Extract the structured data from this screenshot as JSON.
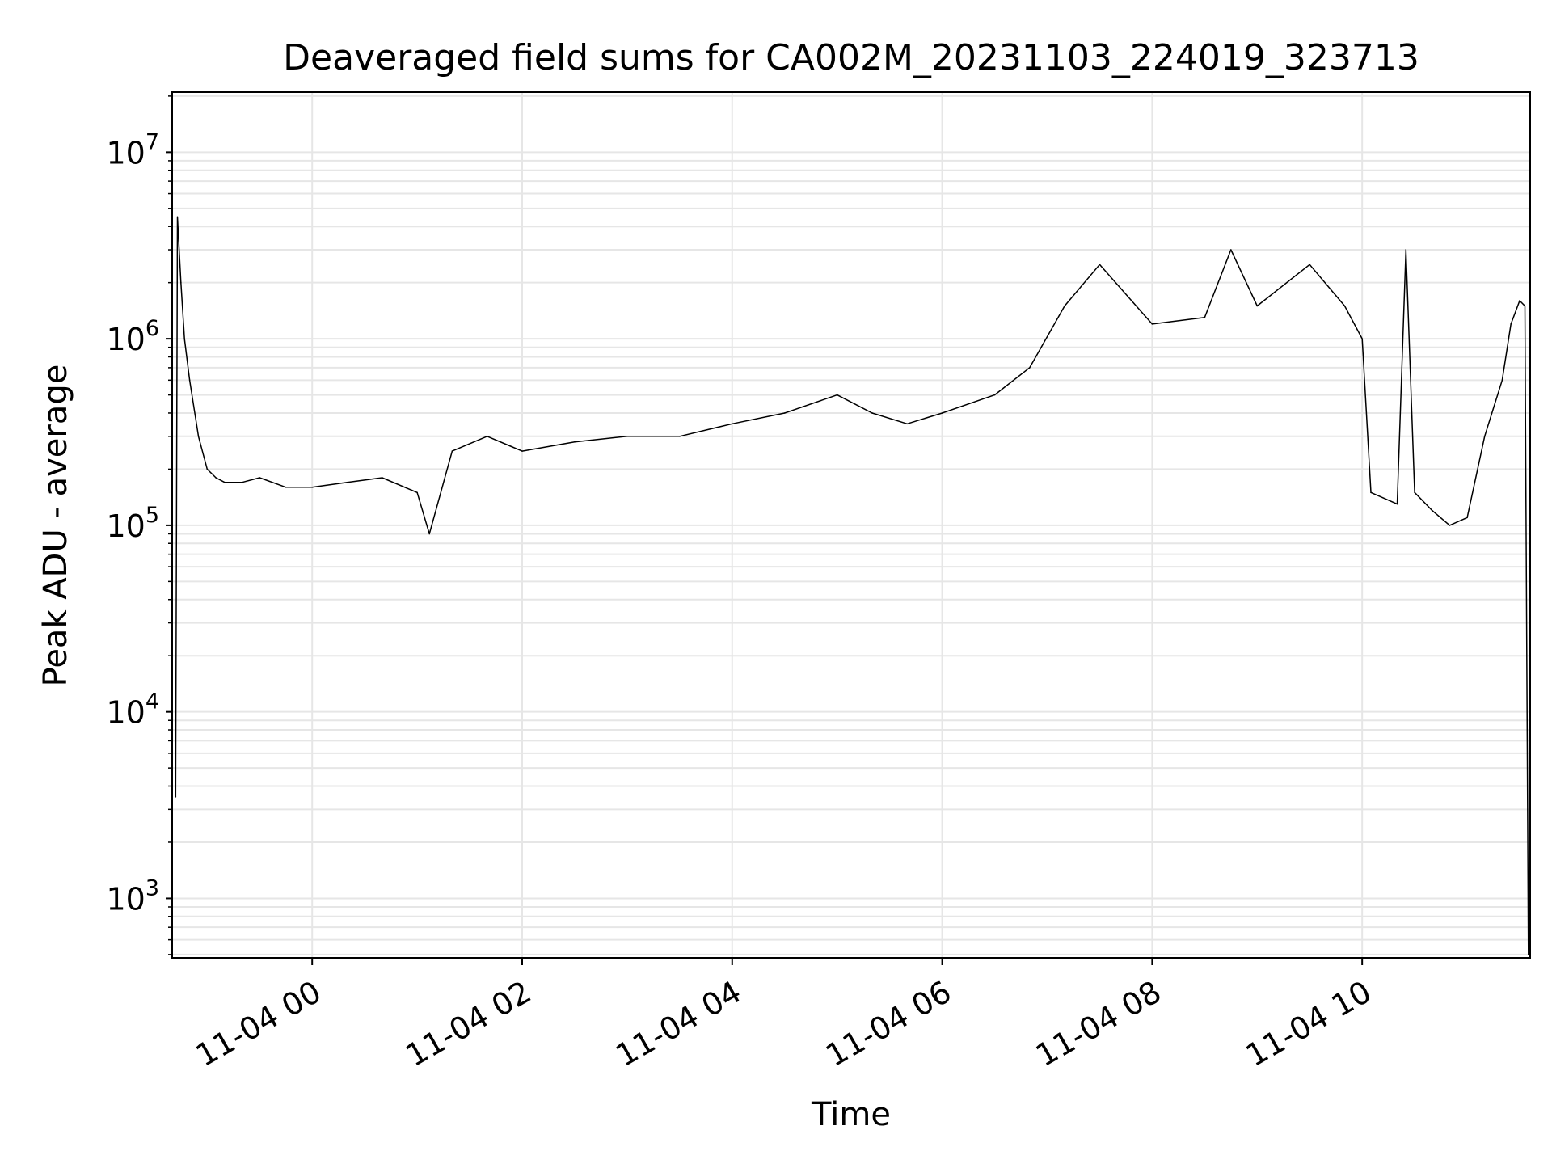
{
  "chart_data": {
    "type": "line",
    "title": "Deaveraged field sums for CA002M_20231103_224019_323713",
    "xlabel": "Time",
    "ylabel": "Peak ADU - average",
    "y_scale": "log",
    "ylim": [
      480,
      21000000
    ],
    "xlim": [
      "2023-11-03 22:40",
      "2023-11-04 11:36"
    ],
    "grid": true,
    "line_color": "#000000",
    "grid_color": "#e6e6e6",
    "x_ticks": [
      {
        "value": "2023-11-04 00:00",
        "label": "11-04 00"
      },
      {
        "value": "2023-11-04 02:00",
        "label": "11-04 02"
      },
      {
        "value": "2023-11-04 04:00",
        "label": "11-04 04"
      },
      {
        "value": "2023-11-04 06:00",
        "label": "11-04 06"
      },
      {
        "value": "2023-11-04 08:00",
        "label": "11-04 08"
      },
      {
        "value": "2023-11-04 10:00",
        "label": "11-04 10"
      }
    ],
    "y_ticks": [
      {
        "value": 1000,
        "base": "10",
        "exp": "3"
      },
      {
        "value": 10000,
        "base": "10",
        "exp": "4"
      },
      {
        "value": 100000,
        "base": "10",
        "exp": "5"
      },
      {
        "value": 1000000,
        "base": "10",
        "exp": "6"
      },
      {
        "value": 10000000,
        "base": "10",
        "exp": "7"
      }
    ],
    "series": [
      {
        "color": "#000000",
        "x": [
          "2023-11-03 22:42",
          "2023-11-03 22:43",
          "2023-11-03 22:45",
          "2023-11-03 22:47",
          "2023-11-03 22:50",
          "2023-11-03 22:55",
          "2023-11-03 23:00",
          "2023-11-03 23:05",
          "2023-11-03 23:10",
          "2023-11-03 23:20",
          "2023-11-03 23:30",
          "2023-11-03 23:45",
          "2023-11-04 00:00",
          "2023-11-04 00:20",
          "2023-11-04 00:40",
          "2023-11-04 01:00",
          "2023-11-04 01:07",
          "2023-11-04 01:20",
          "2023-11-04 01:40",
          "2023-11-04 02:00",
          "2023-11-04 02:30",
          "2023-11-04 03:00",
          "2023-11-04 03:30",
          "2023-11-04 04:00",
          "2023-11-04 04:30",
          "2023-11-04 05:00",
          "2023-11-04 05:20",
          "2023-11-04 05:40",
          "2023-11-04 06:00",
          "2023-11-04 06:30",
          "2023-11-04 06:50",
          "2023-11-04 07:10",
          "2023-11-04 07:30",
          "2023-11-04 08:00",
          "2023-11-04 08:30",
          "2023-11-04 08:45",
          "2023-11-04 09:00",
          "2023-11-04 09:30",
          "2023-11-04 09:50",
          "2023-11-04 10:00",
          "2023-11-04 10:05",
          "2023-11-04 10:20",
          "2023-11-04 10:25",
          "2023-11-04 10:30",
          "2023-11-04 10:40",
          "2023-11-04 10:50",
          "2023-11-04 11:00",
          "2023-11-04 11:10",
          "2023-11-04 11:20",
          "2023-11-04 11:25",
          "2023-11-04 11:30",
          "2023-11-04 11:33",
          "2023-11-04 11:35"
        ],
        "y": [
          3500,
          4500000,
          2000000,
          1000000,
          600000,
          300000,
          200000,
          180000,
          170000,
          170000,
          180000,
          160000,
          160000,
          170000,
          180000,
          150000,
          90000,
          250000,
          300000,
          250000,
          280000,
          300000,
          300000,
          350000,
          400000,
          500000,
          400000,
          350000,
          400000,
          500000,
          700000,
          1500000,
          2500000,
          1200000,
          1300000,
          3000000,
          1500000,
          2500000,
          1500000,
          1000000,
          150000,
          130000,
          3000000,
          150000,
          120000,
          100000,
          110000,
          300000,
          600000,
          1200000,
          1600000,
          1500000,
          500
        ]
      }
    ]
  }
}
